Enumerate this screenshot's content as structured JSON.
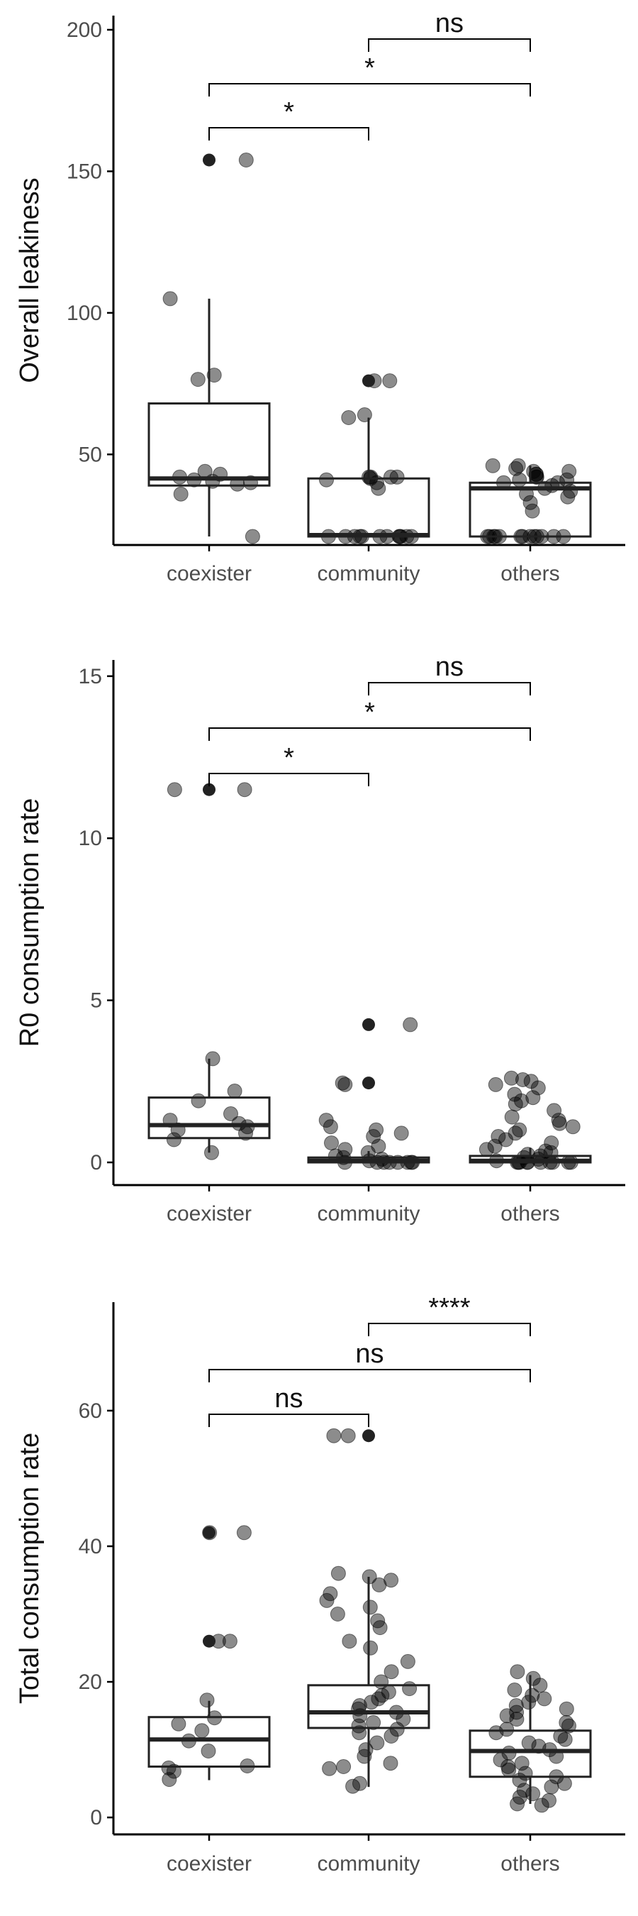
{
  "chart_data": [
    {
      "type": "box",
      "ylabel": "Overall leakiness",
      "categories": [
        "coexister",
        "community",
        "others"
      ],
      "yticks": [
        50,
        100,
        150,
        200
      ],
      "ylim": [
        18,
        205
      ],
      "boxes": [
        {
          "category": "coexister",
          "q1": 39,
          "median": 41.5,
          "q3": 68,
          "whisker_low": 21,
          "whisker_high": 105,
          "outliers": [
            154
          ]
        },
        {
          "category": "community",
          "q1": 21,
          "median": 21.5,
          "q3": 41.5,
          "whisker_low": 21,
          "whisker_high": 63,
          "outliers": [
            76
          ]
        },
        {
          "category": "others",
          "q1": 21,
          "median": 38,
          "q3": 40,
          "whisker_low": 21,
          "whisker_high": 46,
          "outliers": []
        }
      ],
      "points": {
        "coexister": [
          154,
          105,
          78,
          76.5,
          44,
          43,
          42,
          41,
          40.5,
          40,
          39.5,
          36,
          21
        ],
        "community": [
          76,
          76,
          64,
          63,
          42,
          42,
          42,
          42,
          41.5,
          41,
          40,
          38,
          21,
          21,
          21,
          21,
          21,
          21,
          21,
          21,
          21,
          21,
          21,
          21
        ],
        "others": [
          46,
          46,
          45,
          44,
          44,
          43,
          43,
          42,
          42,
          41,
          41,
          40,
          40,
          39,
          38,
          37,
          36,
          35,
          33,
          30,
          21,
          21,
          21,
          21,
          21,
          21,
          21,
          21,
          21,
          21,
          21,
          21,
          21
        ]
      },
      "comparisons": [
        {
          "from": "coexister",
          "to": "community",
          "label": "*"
        },
        {
          "from": "coexister",
          "to": "others",
          "label": "*"
        },
        {
          "from": "community",
          "to": "others",
          "label": "ns"
        }
      ]
    },
    {
      "type": "box",
      "ylabel": "R0 consumption rate",
      "categories": [
        "coexister",
        "community",
        "others"
      ],
      "yticks": [
        0,
        5,
        10,
        15
      ],
      "ylim": [
        -0.7,
        15.5
      ],
      "boxes": [
        {
          "category": "coexister",
          "q1": 0.75,
          "median": 1.15,
          "q3": 2.0,
          "whisker_low": 0.3,
          "whisker_high": 3.2,
          "outliers": [
            11.5
          ]
        },
        {
          "category": "community",
          "q1": 0.0,
          "median": 0.05,
          "q3": 0.15,
          "whisker_low": 0.0,
          "whisker_high": 0.35,
          "outliers": [
            4.25,
            2.45
          ]
        },
        {
          "category": "others",
          "q1": 0.0,
          "median": 0.05,
          "q3": 0.2,
          "whisker_low": 0.0,
          "whisker_high": 0.45,
          "outliers": []
        }
      ],
      "points": {
        "coexister": [
          11.5,
          11.5,
          3.2,
          2.2,
          1.9,
          1.5,
          1.3,
          1.2,
          1.1,
          1.0,
          0.9,
          0.7,
          0.3
        ],
        "community": [
          4.25,
          2.45,
          2.4,
          1.3,
          1.1,
          1.0,
          0.9,
          0.8,
          0.6,
          0.5,
          0.4,
          0.3,
          0.2,
          0.15,
          0.1,
          0.05,
          0.0,
          0.0,
          0.0,
          0.0,
          0.0,
          0.0,
          0.0,
          0.0
        ],
        "others": [
          2.6,
          2.55,
          2.5,
          2.4,
          2.3,
          2.1,
          2.0,
          1.9,
          1.8,
          1.6,
          1.4,
          1.3,
          1.2,
          1.1,
          1.0,
          0.9,
          0.8,
          0.7,
          0.6,
          0.5,
          0.4,
          0.35,
          0.3,
          0.25,
          0.2,
          0.15,
          0.1,
          0.05,
          0.0,
          0.0,
          0.0,
          0.0,
          0.0,
          0.0,
          0.0,
          0.0,
          0.0,
          0.0
        ]
      },
      "comparisons": [
        {
          "from": "coexister",
          "to": "community",
          "label": "*"
        },
        {
          "from": "coexister",
          "to": "others",
          "label": "*"
        },
        {
          "from": "community",
          "to": "others",
          "label": "ns"
        }
      ]
    },
    {
      "type": "box",
      "ylabel": "Total consumption rate",
      "categories": [
        "coexister",
        "community",
        "others"
      ],
      "yticks": [
        0,
        20,
        40,
        60
      ],
      "ylim": [
        -2.5,
        76
      ],
      "boxes": [
        {
          "category": "coexister",
          "q1": 7.5,
          "median": 11.5,
          "q3": 14.8,
          "whisker_low": 5.5,
          "whisker_high": 17.2,
          "outliers": [
            42,
            26
          ]
        },
        {
          "category": "community",
          "q1": 13.2,
          "median": 15.5,
          "q3": 19.5,
          "whisker_low": 4.5,
          "whisker_high": 35.5,
          "outliers": [
            56.3
          ]
        },
        {
          "category": "others",
          "q1": 6.0,
          "median": 9.8,
          "q3": 12.8,
          "whisker_low": 2.0,
          "whisker_high": 21.0,
          "outliers": []
        }
      ],
      "points": {
        "coexister": [
          42,
          42,
          26,
          26,
          17.3,
          14.7,
          13.8,
          12.8,
          11.3,
          9.8,
          7.6,
          7.3,
          6.8,
          5.6
        ],
        "community": [
          56.3,
          56.3,
          36,
          35.5,
          35,
          34.3,
          33,
          32,
          31,
          30,
          29,
          28,
          26,
          25,
          23,
          21.5,
          20,
          19,
          18.5,
          18,
          17.5,
          17,
          16.5,
          16,
          15.5,
          15,
          14.5,
          14,
          13.5,
          13,
          12.5,
          12,
          11,
          10,
          9,
          8,
          7.5,
          7.2,
          5,
          4.6
        ],
        "others": [
          21.5,
          20.5,
          19.5,
          18.8,
          18,
          17.5,
          17,
          16.5,
          16,
          15.5,
          15,
          14.5,
          14,
          13.5,
          13,
          12.5,
          12,
          11.5,
          11,
          10.5,
          10,
          9.5,
          9,
          8.5,
          8,
          7.5,
          7,
          6.5,
          6,
          5.5,
          5,
          4.5,
          4,
          3.5,
          3,
          2.5,
          2,
          1.8
        ]
      },
      "comparisons": [
        {
          "from": "coexister",
          "to": "community",
          "label": "ns"
        },
        {
          "from": "coexister",
          "to": "others",
          "label": "ns"
        },
        {
          "from": "community",
          "to": "others",
          "label": "****"
        }
      ]
    }
  ]
}
